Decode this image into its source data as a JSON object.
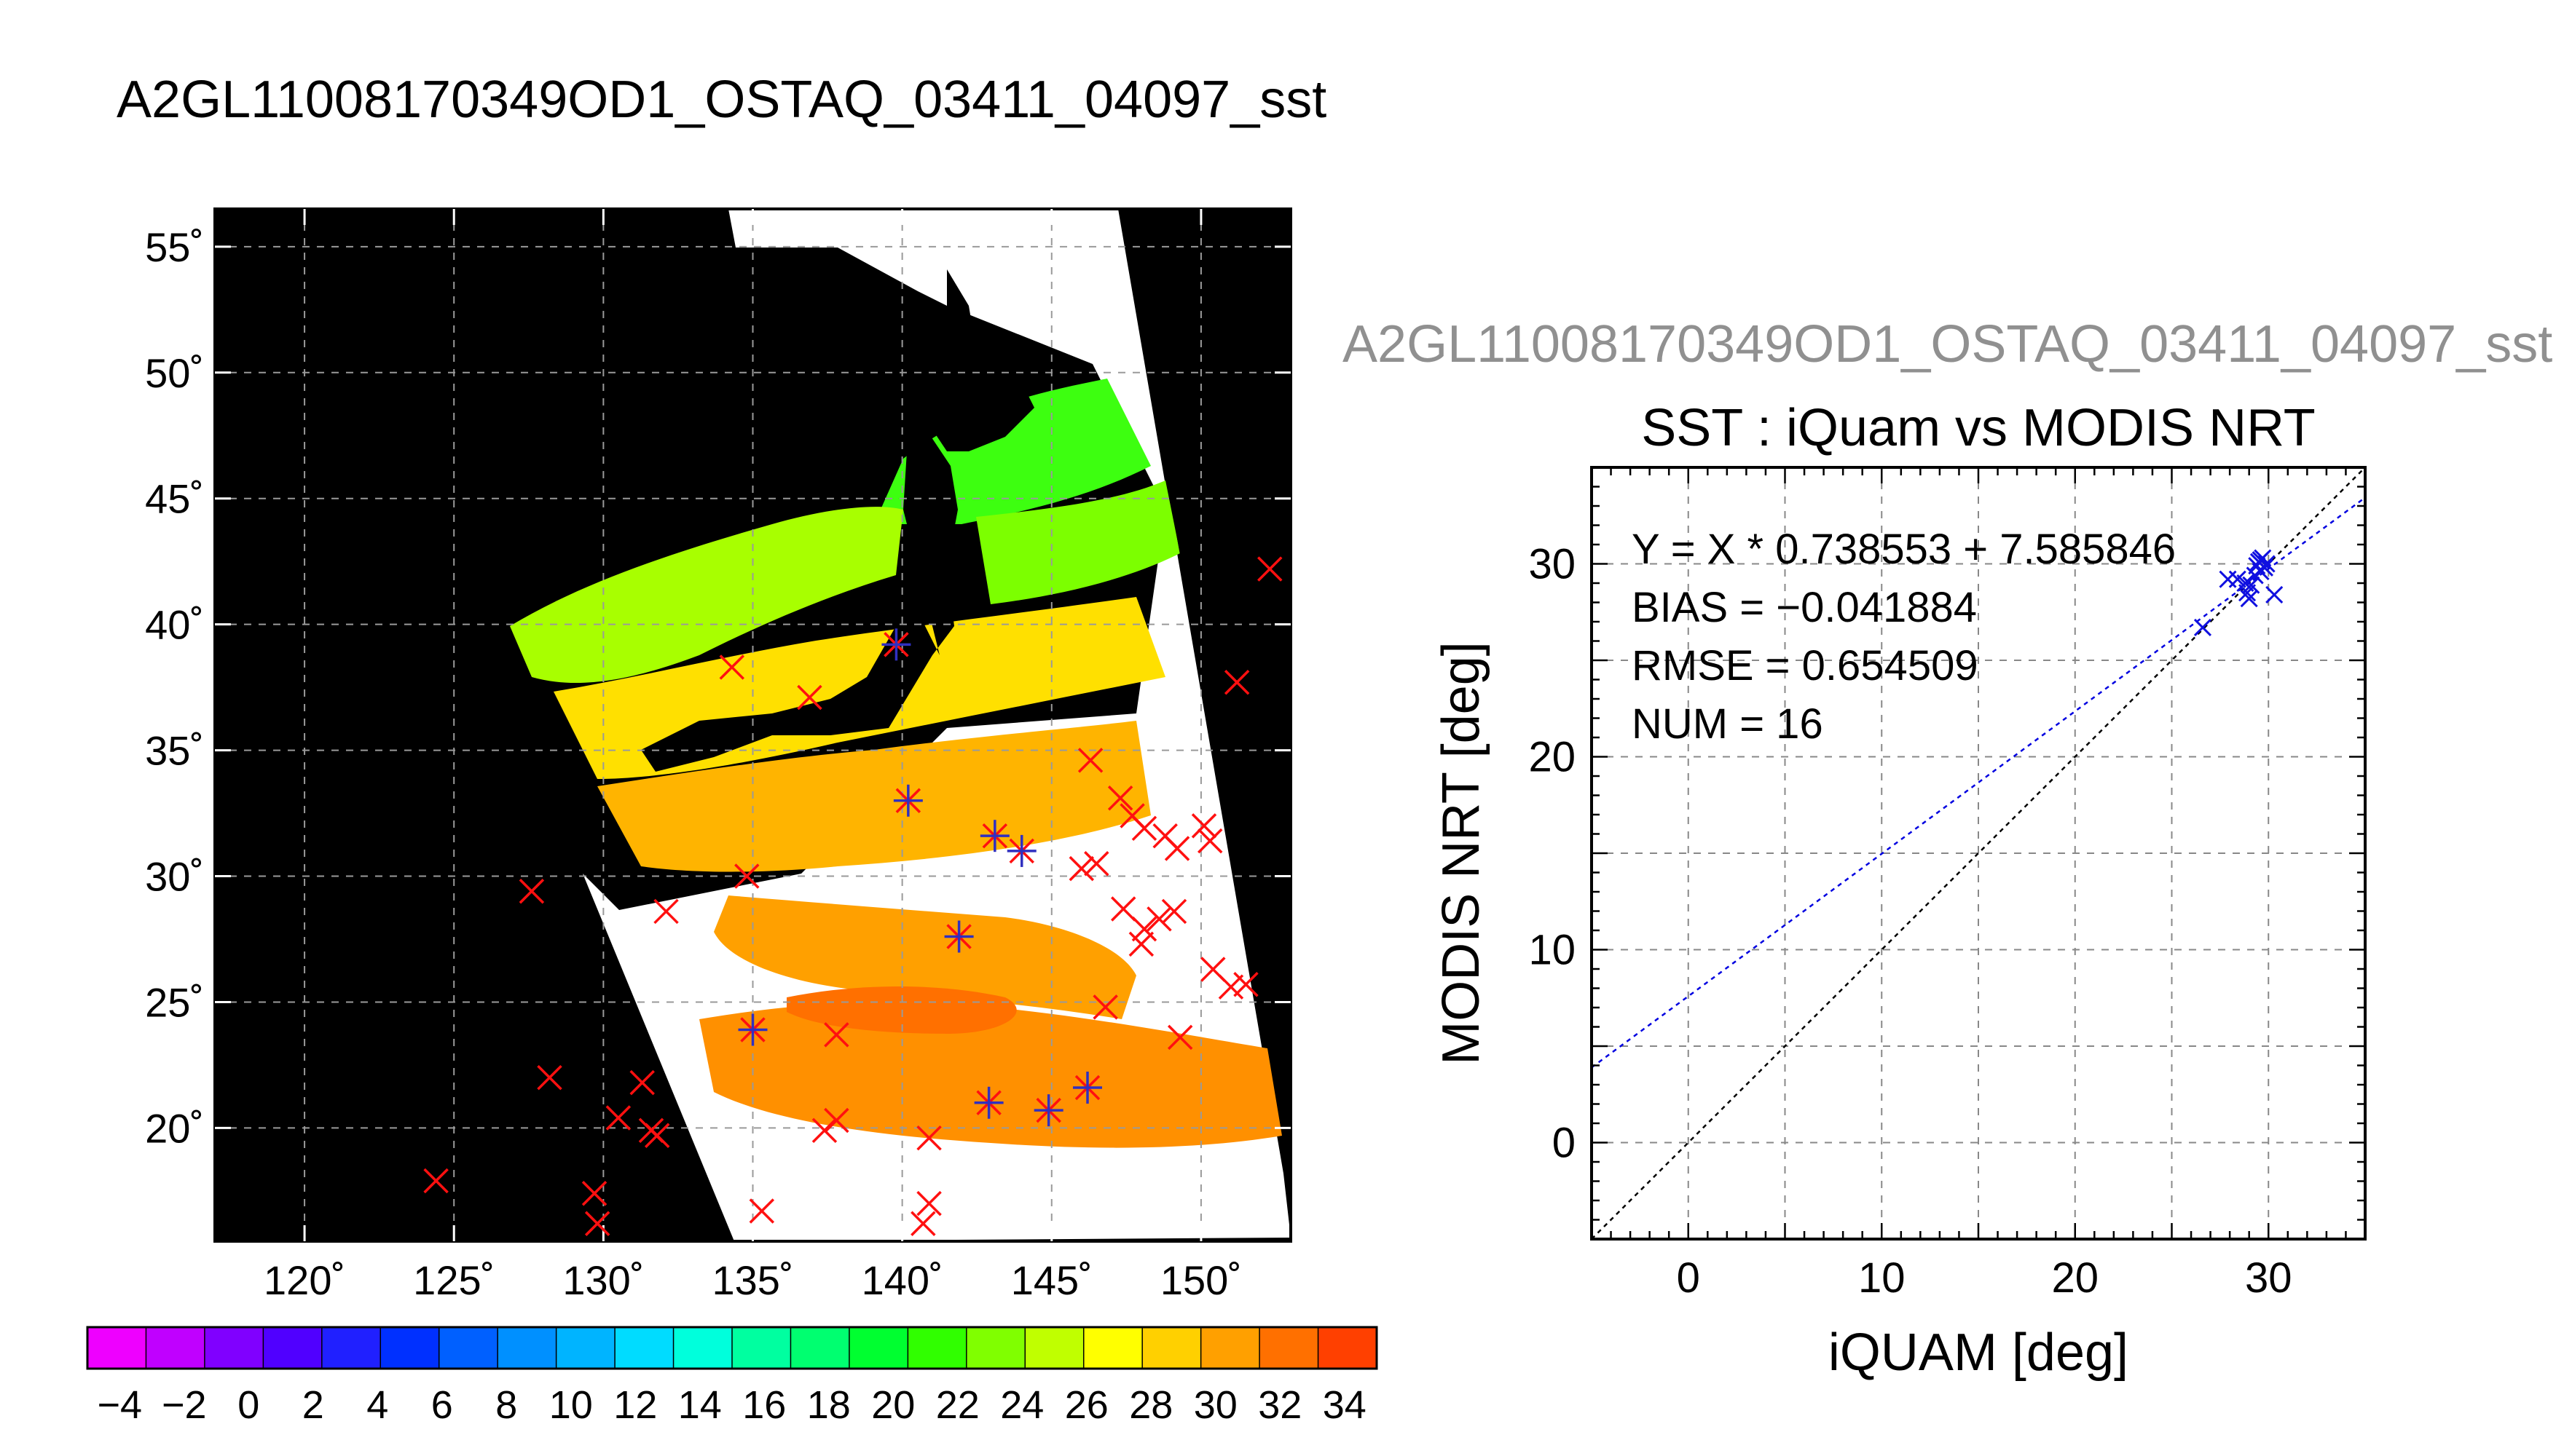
{
  "title": "A2GL11008170349OD1_OSTAQ_03411_04097_sst",
  "subtitle": "A2GL11008170349OD1_OSTAQ_03411_04097_sst",
  "chart_data": [
    {
      "type": "map",
      "lon_ticks": [
        120,
        125,
        130,
        135,
        140,
        145,
        150
      ],
      "lat_ticks": [
        20,
        25,
        30,
        35,
        40,
        45,
        50,
        55
      ],
      "lon_range": [
        117,
        153
      ],
      "lat_range": [
        15.5,
        56.5
      ],
      "background": "#000000",
      "colorbar": {
        "min": -5,
        "max": 35,
        "tick_labels": [
          "−4",
          "−2",
          "0",
          "2",
          "4",
          "6",
          "8",
          "10",
          "12",
          "14",
          "16",
          "18",
          "20",
          "22",
          "24",
          "26",
          "28",
          "30",
          "32",
          "34"
        ],
        "colors": [
          "#ee00ff",
          "#c000ff",
          "#8000ff",
          "#5000ff",
          "#2020ff",
          "#0030ff",
          "#0060ff",
          "#0090ff",
          "#00b4ff",
          "#00dcff",
          "#00ffdc",
          "#00ffa0",
          "#00ff70",
          "#00ff30",
          "#30ff00",
          "#80ff00",
          "#c0ff00",
          "#ffff00",
          "#ffd000",
          "#ffa000",
          "#ff7000",
          "#ff4000"
        ]
      },
      "iquam_points": [
        {
          "lon": 152.3,
          "lat": 42.2
        },
        {
          "lon": 151.2,
          "lat": 37.7
        },
        {
          "lon": 134.3,
          "lat": 38.3
        },
        {
          "lon": 136.9,
          "lat": 37.1
        },
        {
          "lon": 139.8,
          "lat": 39.2
        },
        {
          "lon": 140.2,
          "lat": 33.0
        },
        {
          "lon": 143.1,
          "lat": 31.6
        },
        {
          "lon": 144.0,
          "lat": 31.0
        },
        {
          "lon": 141.9,
          "lat": 27.6
        },
        {
          "lon": 135.0,
          "lat": 23.9
        },
        {
          "lon": 137.8,
          "lat": 23.7
        },
        {
          "lon": 142.9,
          "lat": 21.0
        },
        {
          "lon": 144.9,
          "lat": 20.7
        },
        {
          "lon": 146.2,
          "lat": 21.6
        },
        {
          "lon": 146.3,
          "lat": 34.6
        },
        {
          "lon": 147.3,
          "lat": 33.1
        },
        {
          "lon": 147.7,
          "lat": 32.4
        },
        {
          "lon": 148.1,
          "lat": 31.9
        },
        {
          "lon": 148.8,
          "lat": 31.6
        },
        {
          "lon": 149.2,
          "lat": 31.1
        },
        {
          "lon": 150.1,
          "lat": 32.0
        },
        {
          "lon": 150.3,
          "lat": 31.4
        },
        {
          "lon": 146.5,
          "lat": 30.5
        },
        {
          "lon": 146.0,
          "lat": 30.3
        },
        {
          "lon": 147.4,
          "lat": 28.7
        },
        {
          "lon": 148.1,
          "lat": 27.9
        },
        {
          "lon": 148.6,
          "lat": 28.3
        },
        {
          "lon": 149.1,
          "lat": 28.6
        },
        {
          "lon": 148.0,
          "lat": 27.3
        },
        {
          "lon": 150.4,
          "lat": 26.3
        },
        {
          "lon": 151.0,
          "lat": 25.6
        },
        {
          "lon": 151.5,
          "lat": 25.7
        },
        {
          "lon": 146.8,
          "lat": 24.8
        },
        {
          "lon": 149.3,
          "lat": 23.6
        },
        {
          "lon": 134.8,
          "lat": 30.0
        },
        {
          "lon": 132.1,
          "lat": 28.6
        },
        {
          "lon": 127.6,
          "lat": 29.4
        },
        {
          "lon": 128.2,
          "lat": 22.0
        },
        {
          "lon": 131.3,
          "lat": 21.8
        },
        {
          "lon": 130.5,
          "lat": 20.4
        },
        {
          "lon": 131.6,
          "lat": 19.9
        },
        {
          "lon": 131.8,
          "lat": 19.7
        },
        {
          "lon": 124.4,
          "lat": 17.9
        },
        {
          "lon": 129.7,
          "lat": 17.4
        },
        {
          "lon": 129.8,
          "lat": 16.2
        },
        {
          "lon": 135.3,
          "lat": 16.7
        },
        {
          "lon": 137.4,
          "lat": 19.9
        },
        {
          "lon": 137.8,
          "lat": 20.3
        },
        {
          "lon": 140.9,
          "lat": 19.6
        },
        {
          "lon": 140.9,
          "lat": 17.0
        },
        {
          "lon": 140.7,
          "lat": 16.2
        }
      ],
      "matchup_points": [
        {
          "lon": 139.8,
          "lat": 39.2
        },
        {
          "lon": 140.2,
          "lat": 33.0
        },
        {
          "lon": 143.1,
          "lat": 31.6
        },
        {
          "lon": 144.0,
          "lat": 31.0
        },
        {
          "lon": 141.9,
          "lat": 27.6
        },
        {
          "lon": 135.0,
          "lat": 23.9
        },
        {
          "lon": 142.9,
          "lat": 21.0
        },
        {
          "lon": 144.9,
          "lat": 20.7
        },
        {
          "lon": 146.2,
          "lat": 21.6
        }
      ]
    },
    {
      "type": "scatter",
      "title": "SST : iQuam vs MODIS NRT",
      "xlabel": "iQUAM [deg]",
      "ylabel": "MODIS NRT [deg]",
      "xlim": [
        -5,
        35
      ],
      "ylim": [
        -5,
        35
      ],
      "xticks": [
        0,
        10,
        20,
        30
      ],
      "yticks": [
        0,
        10,
        20,
        30
      ],
      "grid": true,
      "annotations": [
        "Y = X * 0.738553 + 7.585846",
        "BIAS = −0.041884",
        "RMSE = 0.654509",
        "NUM = 16"
      ],
      "fit": {
        "slope": 0.738553,
        "intercept": 7.585846
      },
      "points": [
        {
          "x": 26.6,
          "y": 26.7
        },
        {
          "x": 27.9,
          "y": 29.2
        },
        {
          "x": 28.4,
          "y": 29.2
        },
        {
          "x": 28.8,
          "y": 29.0
        },
        {
          "x": 28.9,
          "y": 28.5
        },
        {
          "x": 29.0,
          "y": 28.2
        },
        {
          "x": 29.1,
          "y": 28.9
        },
        {
          "x": 29.3,
          "y": 29.4
        },
        {
          "x": 29.4,
          "y": 29.9
        },
        {
          "x": 29.5,
          "y": 30.1
        },
        {
          "x": 29.6,
          "y": 29.6
        },
        {
          "x": 29.7,
          "y": 30.3
        },
        {
          "x": 29.8,
          "y": 29.8
        },
        {
          "x": 29.9,
          "y": 30.0
        },
        {
          "x": 30.3,
          "y": 28.4
        },
        {
          "x": 29.6,
          "y": 30.2
        }
      ]
    }
  ]
}
